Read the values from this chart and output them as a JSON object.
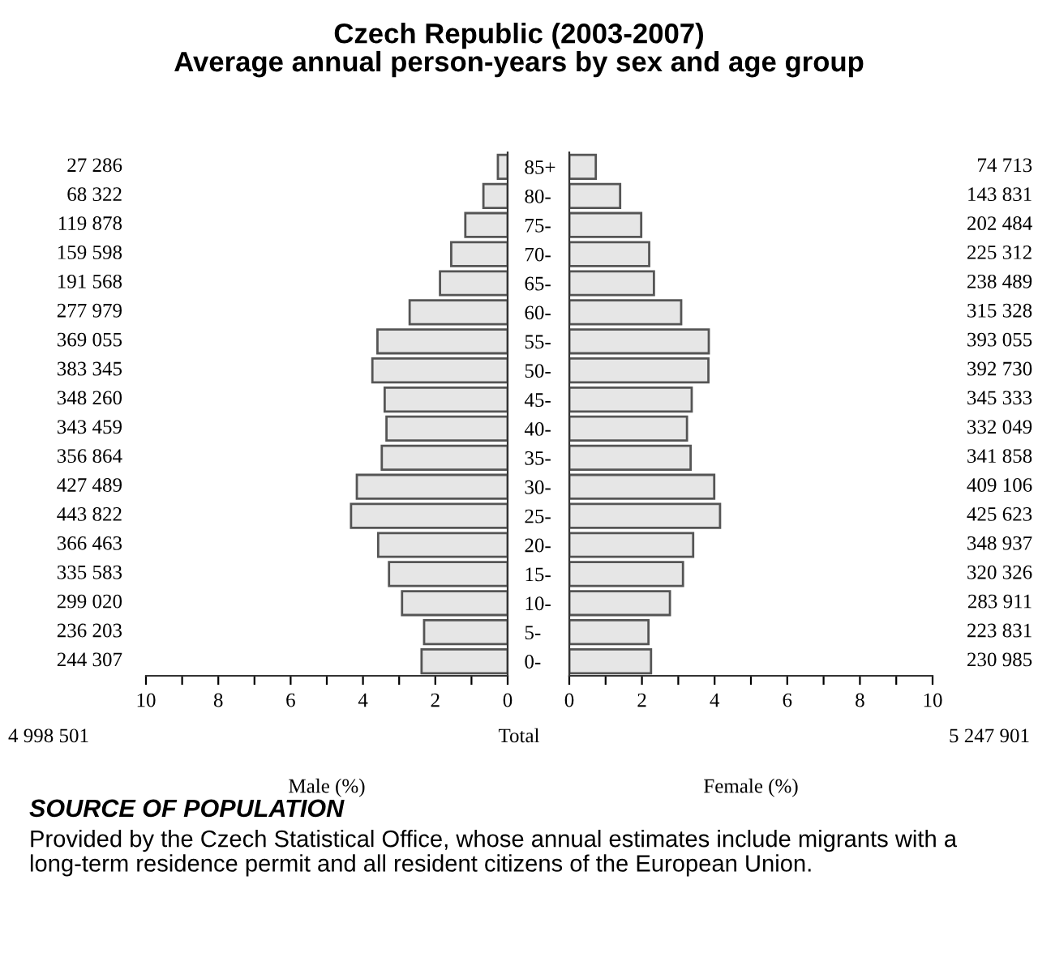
{
  "chart_data": [
    {
      "type": "bar",
      "orientation": "horizontal",
      "title": "Czech Republic (2003-2007)",
      "subtitle": "Average annual person-years by sex and age group",
      "xlabel": "Male (%)",
      "categories": [
        null,
        null,
        null,
        null,
        null,
        null,
        null,
        null,
        null,
        null,
        null,
        null,
        null,
        null,
        null,
        null,
        null,
        null
      ],
      "values": [
        0.27,
        0.67,
        1.17,
        1.56,
        1.87,
        2.71,
        3.6,
        3.74,
        3.4,
        3.35,
        3.48,
        4.17,
        4.33,
        3.58,
        3.28,
        2.92,
        2.31,
        2.38
      ],
      "color": "#e6e6e6",
      "xlim": [
        10,
        0
      ],
      "xticks": [
        10,
        {
          "value": 9,
          "label": null
        },
        8,
        {
          "value": 7,
          "label": null
        },
        6,
        {
          "value": 5,
          "label": null
        },
        4,
        {
          "value": 3,
          "label": null
        },
        2,
        {
          "value": 1,
          "label": null
        },
        0
      ],
      "annotations": [
        "27 286",
        "68 322",
        "119 878",
        "159 598",
        "191 568",
        "277 979",
        "369 055",
        "383 345",
        "348 260",
        "343 459",
        "356 864",
        "427 489",
        "443 822",
        "366 463",
        "335 583",
        "299 020",
        "236 203",
        "244 307",
        "4 998 501",
        "Total",
        "SOURCE OF POPULATION",
        "Provided by the Czech Statistical Office, whose annual estimates include migrants with a long-term residence permit and all resident citizens of the European Union."
      ],
      "grid": false,
      "legend": false
    },
    {
      "type": "bar",
      "orientation": "horizontal",
      "xlabel": "Female (%)",
      "categories": [
        "85+",
        "80-",
        "75-",
        "70-",
        "65-",
        "60-",
        "55-",
        "50-",
        "45-",
        "40-",
        "35-",
        "30-",
        "25-",
        "20-",
        "15-",
        "10-",
        "5-",
        "0-"
      ],
      "values": [
        0.73,
        1.4,
        1.98,
        2.2,
        2.33,
        3.08,
        3.84,
        3.83,
        3.37,
        3.24,
        3.34,
        3.99,
        4.15,
        3.41,
        3.13,
        2.77,
        2.18,
        2.25
      ],
      "color": "#e6e6e6",
      "xlim": [
        0,
        10
      ],
      "xticks": [
        0,
        {
          "value": 1,
          "label": null
        },
        2,
        {
          "value": 3,
          "label": null
        },
        4,
        {
          "value": 5,
          "label": null
        },
        6,
        {
          "value": 7,
          "label": null
        },
        8,
        {
          "value": 9,
          "label": null
        },
        10
      ],
      "annotations": [
        "74 713",
        "143 831",
        "202 484",
        "225 312",
        "238 489",
        "315 328",
        "393 055",
        "392 730",
        "345 333",
        "332 049",
        "341 858",
        "409 106",
        "425 623",
        "348 937",
        "320 326",
        "283 911",
        "223 831",
        "230 985",
        "5 247 901"
      ],
      "grid": false,
      "legend": false
    }
  ]
}
